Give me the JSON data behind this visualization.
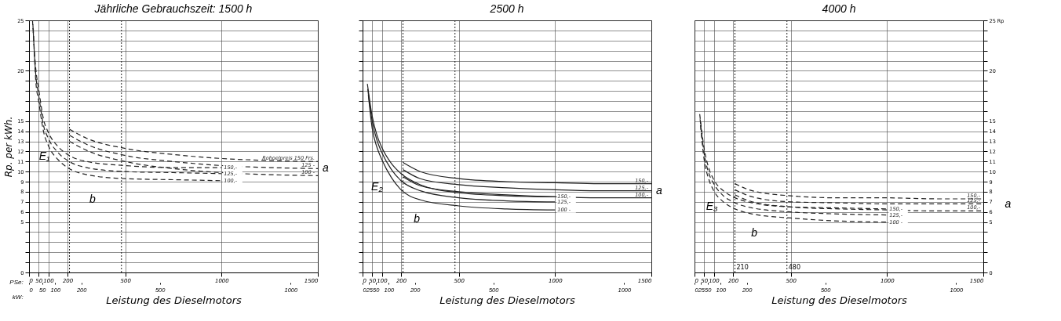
{
  "chart_data": [
    {
      "type": "line",
      "title": "Jährliche Gebrauchszeit:  1500 h",
      "xlabel": "Leistung des Dieselmotors",
      "ylabel": "Rp. per kWh.",
      "xlim": [
        0,
        1500
      ],
      "xticks": [
        0,
        50,
        100,
        200,
        500,
        1000,
        1500
      ],
      "x2lim": [
        0,
        1104
      ],
      "x2ticks": [
        0,
        50,
        100,
        200,
        500,
        1000
      ],
      "ylim": [
        0,
        25
      ],
      "yticks": [
        0,
        {
          "value": 1,
          "label": null
        },
        {
          "value": 2,
          "label": null
        },
        {
          "value": 3,
          "label": null
        },
        {
          "value": 4,
          "label": null
        },
        5,
        6,
        7,
        8,
        9,
        10,
        11,
        12,
        13,
        14,
        15,
        {
          "value": 16,
          "label": null
        },
        {
          "value": 17,
          "label": null
        },
        {
          "value": 18,
          "label": null
        },
        {
          "value": 19,
          "label": null
        },
        20,
        {
          "value": 21,
          "label": null
        },
        {
          "value": 22,
          "label": null
        },
        {
          "value": 23,
          "label": null
        },
        {
          "value": 24,
          "label": null
        },
        25
      ],
      "grid": true,
      "line_style": "dashed",
      "series": [
        {
          "name": "150,-",
          "color": "#222222",
          "x": [
            18,
            35,
            50,
            75,
            100,
            150,
            200,
            300,
            500,
            750,
            1000
          ],
          "values": [
            25,
            20.2,
            18.2,
            15.2,
            13.9,
            12.5,
            11.7,
            11.0,
            10.6,
            10.4,
            10.4
          ]
        },
        {
          "name": "125,-",
          "color": "#222222",
          "x": [
            20,
            35,
            50,
            75,
            100,
            150,
            200,
            300,
            500,
            750,
            1000
          ],
          "values": [
            24.6,
            19.6,
            17.6,
            14.6,
            13.3,
            11.9,
            11.1,
            10.4,
            10.0,
            9.9,
            9.8
          ]
        },
        {
          "name": "100,-",
          "color": "#222222",
          "x": [
            22,
            35,
            50,
            75,
            100,
            150,
            200,
            300,
            500,
            750,
            1000
          ],
          "values": [
            24.2,
            19.0,
            17.0,
            14.0,
            12.6,
            11.2,
            10.4,
            9.7,
            9.3,
            9.2,
            9.1
          ]
        },
        {
          "name": "Rohoelpreis 150 Frs.",
          "color": "#222222",
          "x": [
            210,
            300,
            500,
            750,
            1000,
            1250,
            1500
          ],
          "values": [
            14.2,
            13.3,
            12.3,
            11.7,
            11.3,
            11.1,
            11.0
          ]
        },
        {
          "name": "125 -",
          "color": "#222222",
          "x": [
            210,
            300,
            500,
            750,
            1000,
            1250,
            1500
          ],
          "values": [
            13.6,
            12.7,
            11.6,
            11.0,
            10.6,
            10.4,
            10.3
          ]
        },
        {
          "name": "100 -",
          "color": "#222222",
          "x": [
            210,
            300,
            500,
            750,
            1000,
            1250,
            1500
          ],
          "values": [
            13.0,
            12.1,
            11.0,
            10.3,
            9.9,
            9.7,
            9.6
          ]
        }
      ],
      "ref_lines": [
        {
          "axis": "x",
          "value": 210,
          "line_style": "dotted"
        },
        {
          "axis": "x",
          "value": 480,
          "line_style": "dotted"
        }
      ],
      "annotations": [
        "PSe:",
        "kW:",
        "E₁",
        "b",
        {
          "text": "a",
          "x": 1500,
          "y": 10.3
        }
      ]
    },
    {
      "type": "line",
      "title": "2500 h",
      "xlabel": "Leistung des Dieselmotors",
      "xlim": [
        0,
        1500
      ],
      "xticks": [
        0,
        50,
        100,
        200,
        500,
        1000,
        1500
      ],
      "x2lim": [
        0,
        1104
      ],
      "x2ticks": [
        0,
        25,
        50,
        100,
        200,
        500,
        1000
      ],
      "ylim": [
        0,
        25
      ],
      "yticks": [
        0,
        {
          "value": 1,
          "label": null
        },
        {
          "value": 2,
          "label": null
        },
        {
          "value": 3,
          "label": null
        },
        {
          "value": 4,
          "label": null
        },
        5,
        6,
        7,
        8,
        9,
        10,
        11,
        12,
        13,
        14,
        15,
        {
          "value": 16,
          "label": null
        },
        {
          "value": 17,
          "label": null
        },
        {
          "value": 18,
          "label": null
        },
        {
          "value": 19,
          "label": null
        },
        20,
        {
          "value": 21,
          "label": null
        },
        {
          "value": 22,
          "label": null
        },
        {
          "value": 23,
          "label": null
        },
        {
          "value": 24,
          "label": null
        },
        25
      ],
      "tick_labels": "x",
      "grid": true,
      "line_style": "solid",
      "series": [
        {
          "name": "150,-",
          "color": "#222222",
          "x": [
            25,
            50,
            75,
            100,
            150,
            200,
            300,
            500,
            750,
            1000
          ],
          "values": [
            18.7,
            15.5,
            13.6,
            12.4,
            10.8,
            9.8,
            8.7,
            7.9,
            7.6,
            7.5
          ]
        },
        {
          "name": "125,-",
          "color": "#222222",
          "x": [
            27,
            50,
            75,
            100,
            150,
            200,
            300,
            500,
            750,
            1000
          ],
          "values": [
            18.2,
            15.0,
            13.1,
            11.9,
            10.2,
            9.1,
            8.1,
            7.4,
            7.1,
            7.0
          ]
        },
        {
          "name": "100 -",
          "color": "#222222",
          "x": [
            30,
            50,
            75,
            100,
            150,
            200,
            300,
            500,
            750,
            1000
          ],
          "values": [
            17.6,
            14.3,
            12.4,
            11.2,
            9.4,
            8.2,
            7.2,
            6.6,
            6.3,
            6.2
          ]
        },
        {
          "name": "150,-",
          "color": "#222222",
          "x": [
            210,
            300,
            500,
            750,
            1000,
            1250,
            1500
          ],
          "values": [
            10.9,
            10.0,
            9.3,
            9.0,
            8.9,
            8.8,
            8.8
          ]
        },
        {
          "name": "125,-",
          "color": "#222222",
          "x": [
            210,
            300,
            500,
            750,
            1000,
            1250,
            1500
          ],
          "values": [
            10.2,
            9.3,
            8.7,
            8.4,
            8.2,
            8.1,
            8.1
          ]
        },
        {
          "name": "100,-",
          "color": "#222222",
          "x": [
            210,
            300,
            500,
            750,
            1000,
            1250,
            1500
          ],
          "values": [
            9.5,
            8.6,
            8.0,
            7.7,
            7.5,
            7.4,
            7.4
          ]
        }
      ],
      "ref_lines": [
        {
          "axis": "x",
          "value": 210,
          "line_style": "dotted"
        },
        {
          "axis": "x",
          "value": 480,
          "line_style": "dotted"
        }
      ],
      "annotations": [
        "E₂",
        "b",
        {
          "text": "a",
          "x": 1500,
          "y": 8.05
        }
      ]
    },
    {
      "type": "line",
      "title": "4000 h",
      "xlabel": "Leistung des Dieselmotors",
      "xlim": [
        0,
        1500
      ],
      "xticks": [
        0,
        50,
        100,
        200,
        500,
        1000,
        1500
      ],
      "x2lim": [
        0,
        1104
      ],
      "x2ticks": [
        0,
        25,
        50,
        100,
        200,
        500,
        1000
      ],
      "y2lim": [
        0,
        25
      ],
      "y2ticks": [
        0,
        {
          "value": 1,
          "label": null
        },
        {
          "value": 2,
          "label": null
        },
        {
          "value": 3,
          "label": null
        },
        {
          "value": 4,
          "label": null
        },
        5,
        6,
        7,
        8,
        9,
        10,
        11,
        12,
        13,
        14,
        15,
        {
          "value": 16,
          "label": null
        },
        {
          "value": 17,
          "label": null
        },
        {
          "value": 18,
          "label": null
        },
        {
          "value": 19,
          "label": null
        },
        20,
        {
          "value": 21,
          "label": null
        },
        {
          "value": 22,
          "label": null
        },
        {
          "value": 23,
          "label": null
        },
        {
          "value": 24,
          "label": null
        },
        {
          "value": 25,
          "label": "25 Rp"
        }
      ],
      "grid": true,
      "line_style": "dashed",
      "series": [
        {
          "name": "150,-",
          "color": "#222222",
          "axis": "y2",
          "x": [
            27,
            50,
            75,
            100,
            150,
            200,
            300,
            500,
            750,
            1000
          ],
          "values": [
            15.7,
            12.3,
            10.3,
            9.2,
            8.1,
            7.5,
            6.9,
            6.5,
            6.4,
            6.3
          ]
        },
        {
          "name": "125,-",
          "color": "#222222",
          "axis": "y2",
          "x": [
            29,
            50,
            75,
            100,
            150,
            200,
            300,
            500,
            750,
            1000
          ],
          "values": [
            15.2,
            11.8,
            9.8,
            8.8,
            7.6,
            7.0,
            6.4,
            6.0,
            5.8,
            5.7
          ]
        },
        {
          "name": "100 -",
          "color": "#222222",
          "axis": "y2",
          "x": [
            31,
            50,
            75,
            100,
            150,
            200,
            300,
            500,
            750,
            1000
          ],
          "values": [
            14.6,
            11.2,
            9.2,
            8.1,
            7.0,
            6.4,
            5.8,
            5.4,
            5.1,
            5.0
          ]
        },
        {
          "name": "150,-",
          "color": "#222222",
          "axis": "y2",
          "x": [
            210,
            300,
            500,
            750,
            1000,
            1250,
            1500
          ],
          "values": [
            8.8,
            8.1,
            7.6,
            7.4,
            7.4,
            7.3,
            7.3
          ]
        },
        {
          "name": "125,-",
          "color": "#222222",
          "axis": "y2",
          "x": [
            210,
            300,
            500,
            750,
            1000,
            1250,
            1500
          ],
          "values": [
            8.2,
            7.5,
            7.0,
            6.9,
            6.8,
            6.8,
            6.8
          ]
        },
        {
          "name": "100,-",
          "color": "#222222",
          "axis": "y2",
          "x": [
            210,
            300,
            500,
            750,
            1000,
            1250,
            1500
          ],
          "values": [
            7.7,
            7.0,
            6.5,
            6.3,
            6.2,
            6.1,
            6.1
          ]
        }
      ],
      "ref_lines": [
        {
          "axis": "x",
          "value": 210,
          "label": "210",
          "line_style": "dotted"
        },
        {
          "axis": "x",
          "value": 480,
          "label": "480",
          "line_style": "dotted"
        }
      ],
      "annotations": [
        "E₃",
        "b",
        "a"
      ]
    }
  ]
}
